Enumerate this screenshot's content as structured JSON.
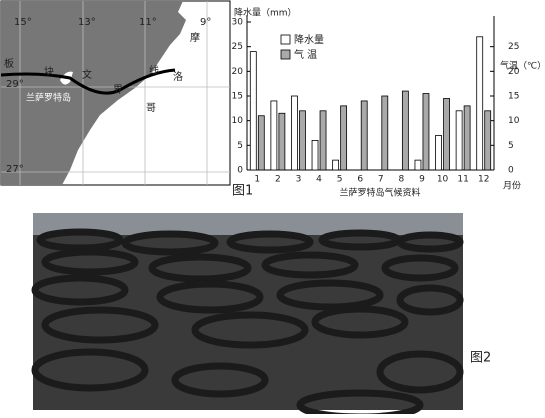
{
  "chart_data": {
    "type": "bar",
    "caption": "兰萨罗特岛气候资料",
    "y_label": "降水量（mm）",
    "y2_label": "气温（℃）",
    "x_label": "月份",
    "categories": [
      "1",
      "2",
      "3",
      "4",
      "5",
      "6",
      "7",
      "8",
      "9",
      "10",
      "11",
      "12"
    ],
    "series": [
      {
        "name": "降水量",
        "color": "#ffffff",
        "values": [
          24,
          14,
          15,
          6,
          2,
          0,
          0,
          0,
          2,
          7,
          12,
          27
        ]
      },
      {
        "name": "气 温",
        "color": "#a9a9a9",
        "axis": "y2",
        "values": [
          11,
          11.5,
          12,
          12,
          13,
          14,
          15,
          16,
          15.5,
          14.5,
          13,
          12
        ]
      }
    ],
    "ylim": [
      0,
      30
    ],
    "yticks": [
      0,
      5,
      10,
      15,
      20,
      25,
      30
    ],
    "y2lim": [
      0,
      30
    ],
    "y2ticks": [
      0,
      5,
      10,
      15,
      20,
      25
    ]
  },
  "map": {
    "longitudes": [
      "15°",
      "13°",
      "11°",
      "9°"
    ],
    "latitudes": [
      "29°",
      "27°"
    ],
    "boundary_chars": [
      "板",
      "块",
      "文",
      "界",
      "线"
    ],
    "country_chars": [
      "摩",
      "洛",
      "哥"
    ],
    "island": "兰萨罗特岛"
  },
  "figure_labels": [
    "图1",
    "图2"
  ]
}
